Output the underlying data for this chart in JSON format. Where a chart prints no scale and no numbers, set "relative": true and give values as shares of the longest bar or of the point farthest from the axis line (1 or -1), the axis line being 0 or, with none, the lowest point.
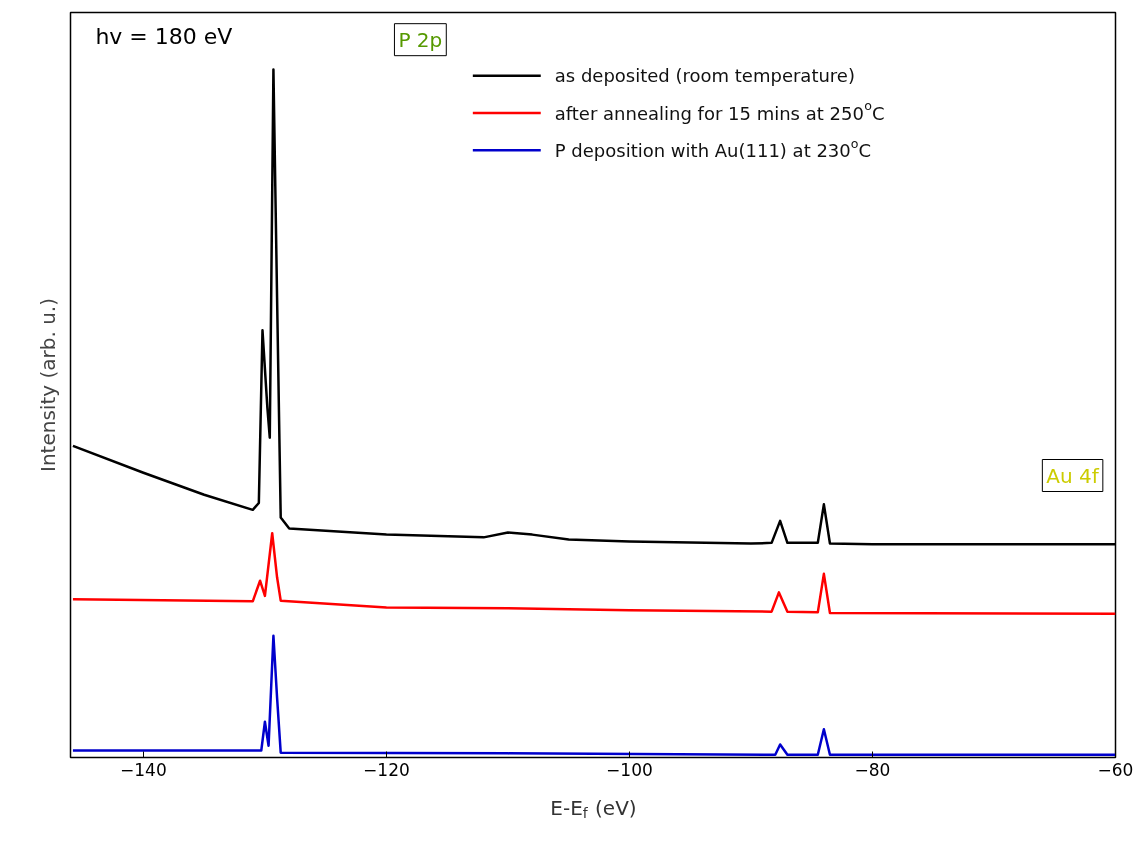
{
  "chart_data": {
    "type": "line",
    "relative": true,
    "xlabel": "E-E$_{f}$ (eV)",
    "ylabel": "Intensity (arb. u.)",
    "xlim": [
      -146,
      -60
    ],
    "xticks": [
      -140,
      -120,
      -100,
      -80,
      -60
    ],
    "tick_labels": "x",
    "grid": false,
    "legend": "top right",
    "marker": "none",
    "line_style": "solid",
    "annotations": [
      "hv = 180 eV",
      "P 2p",
      "Au 4f"
    ],
    "series": [
      {
        "name": "as deposited (room temperature)",
        "color": "#000000",
        "x": [
          -145.8,
          -140,
          -135,
          -131,
          -130.5,
          -130.2,
          -129.8,
          -129.6,
          -129.3,
          -129,
          -128.7,
          -128,
          -120,
          -112,
          -110,
          -108,
          -105,
          -100,
          -90,
          -88.3,
          -87.6,
          -87,
          -84.5,
          -84,
          -83.5,
          -80,
          -60
        ],
        "values": [
          0.453,
          0.414,
          0.382,
          0.36,
          0.37,
          0.621,
          0.509,
          0.465,
          1.0,
          0.669,
          0.349,
          0.333,
          0.324,
          0.32,
          0.327,
          0.324,
          0.317,
          0.314,
          0.311,
          0.312,
          0.344,
          0.312,
          0.312,
          0.368,
          0.311,
          0.31,
          0.31
        ]
      },
      {
        "name": "after annealing for 15 mins at 250$^{o}$C",
        "color": "#ff0000",
        "x": [
          -145.8,
          -131,
          -130.4,
          -130,
          -129.4,
          -129,
          -128.7,
          -120,
          -110,
          -100,
          -88.3,
          -87.7,
          -87,
          -84.5,
          -84,
          -83.5,
          -60
        ],
        "values": [
          0.23,
          0.227,
          0.257,
          0.235,
          0.326,
          0.262,
          0.228,
          0.218,
          0.217,
          0.214,
          0.212,
          0.24,
          0.212,
          0.211,
          0.267,
          0.21,
          0.209
        ]
      },
      {
        "name": "P deposition with Au(111) at 230$^{o}$C",
        "color": "#0000cc",
        "x": [
          -145.8,
          -130.3,
          -130.0,
          -129.7,
          -129.3,
          -129,
          -128.7,
          -110,
          -88,
          -87.6,
          -87,
          -84.5,
          -84,
          -83.5,
          -60
        ],
        "values": [
          0.01,
          0.01,
          0.052,
          0.017,
          0.177,
          0.087,
          0.007,
          0.006,
          0.004,
          0.019,
          0.004,
          0.004,
          0.041,
          0.004,
          0.004
        ]
      }
    ]
  }
}
